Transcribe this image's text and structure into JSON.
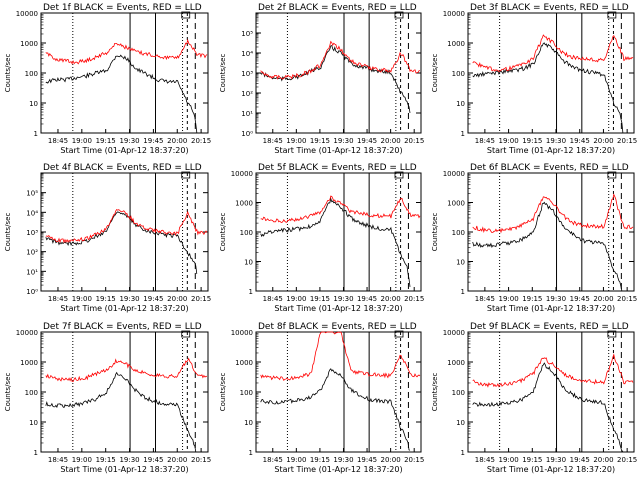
{
  "colors": {
    "events": "#000000",
    "lld": "#ff0000",
    "background": "#ffffff",
    "axes": "#000000"
  },
  "common": {
    "xlabel": "Start Time (01-Apr-12 18:37:20)",
    "ylabel": "Counts/sec",
    "x_ticks": [
      "18:45",
      "19:00",
      "19:15",
      "19:30",
      "19:45",
      "20:00",
      "20:15"
    ],
    "y_ticks_a": [
      "1",
      "10",
      "100",
      "1000",
      "10000"
    ],
    "y_ticks_b": [
      "10⁰",
      "10¹",
      "10²",
      "10³",
      "10⁴",
      "10⁵"
    ],
    "time_range_min": [
      -3,
      102
    ],
    "tick_offsets_min": [
      7.67,
      22.67,
      37.67,
      52.67,
      67.67,
      82.67,
      97.67
    ],
    "vlines_solid_min": [
      53,
      69
    ],
    "vlines_dotted_min": [
      17,
      86
    ],
    "vlines_dashed_min": [
      94,
      89
    ]
  },
  "chart_data": [
    {
      "type": "line",
      "title": "Det 1f BLACK = Events, RED = LLD",
      "yscale": "log",
      "ylim": [
        1,
        10000
      ],
      "ytick_set": "a",
      "series": [
        {
          "name": "Events",
          "color": "#000000",
          "values": [
            50,
            60,
            60,
            70,
            80,
            100,
            120,
            400,
            300,
            130,
            90,
            60,
            50,
            50,
            10,
            0,
            0
          ]
        },
        {
          "name": "LLD",
          "color": "#ff0000",
          "values": [
            450,
            300,
            250,
            230,
            260,
            350,
            480,
            1000,
            700,
            500,
            420,
            380,
            330,
            320,
            1200,
            380,
            380
          ]
        }
      ]
    },
    {
      "type": "line",
      "title": "Det 2f BLACK = Events, RED = LLD",
      "yscale": "log",
      "ylim": [
        1,
        1000000
      ],
      "ytick_set": "b",
      "series": [
        {
          "name": "Events",
          "color": "#000000",
          "values": [
            1000,
            600,
            500,
            550,
            700,
            1200,
            2000,
            20000,
            10000,
            3000,
            2000,
            1500,
            1200,
            1100,
            100,
            0,
            0
          ]
        },
        {
          "name": "LLD",
          "color": "#ff0000",
          "values": [
            1100,
            700,
            600,
            650,
            800,
            1300,
            2500,
            30000,
            15000,
            4000,
            2500,
            1800,
            1400,
            1300,
            10000,
            1200,
            1200
          ]
        }
      ]
    },
    {
      "type": "line",
      "title": "Det 3f BLACK = Events, RED = LLD",
      "yscale": "log",
      "ylim": [
        1,
        10000
      ],
      "ytick_set": "a",
      "series": [
        {
          "name": "Events",
          "color": "#000000",
          "values": [
            80,
            90,
            100,
            110,
            120,
            140,
            200,
            1000,
            600,
            250,
            150,
            120,
            100,
            90,
            10,
            0,
            0
          ]
        },
        {
          "name": "LLD",
          "color": "#ff0000",
          "values": [
            250,
            160,
            130,
            130,
            150,
            200,
            300,
            1800,
            1000,
            450,
            330,
            300,
            280,
            260,
            1800,
            300,
            300
          ]
        }
      ]
    },
    {
      "type": "line",
      "title": "Det 4f BLACK = Events, RED = LLD",
      "yscale": "log",
      "ylim": [
        1,
        1000000
      ],
      "ytick_set": "b",
      "series": [
        {
          "name": "Events",
          "color": "#000000",
          "values": [
            500,
            300,
            250,
            280,
            350,
            600,
            1200,
            12000,
            6000,
            2000,
            1200,
            900,
            700,
            650,
            80,
            0,
            0
          ]
        },
        {
          "name": "LLD",
          "color": "#ff0000",
          "values": [
            700,
            400,
            350,
            380,
            450,
            800,
            1500,
            16000,
            8000,
            2500,
            1500,
            1100,
            900,
            850,
            9000,
            900,
            900
          ]
        }
      ]
    },
    {
      "type": "line",
      "title": "Det 5f BLACK = Events, RED = LLD",
      "yscale": "log",
      "ylim": [
        1,
        10000
      ],
      "ytick_set": "a",
      "series": [
        {
          "name": "Events",
          "color": "#000000",
          "values": [
            80,
            100,
            110,
            120,
            130,
            160,
            250,
            1300,
            700,
            300,
            200,
            150,
            130,
            120,
            15,
            0,
            0
          ]
        },
        {
          "name": "LLD",
          "color": "#ff0000",
          "values": [
            300,
            250,
            240,
            250,
            280,
            350,
            500,
            1500,
            900,
            500,
            420,
            380,
            350,
            340,
            1500,
            350,
            350
          ]
        }
      ]
    },
    {
      "type": "line",
      "title": "Det 6f BLACK = Events, RED = LLD",
      "yscale": "log",
      "ylim": [
        1,
        10000
      ],
      "ytick_set": "a",
      "series": [
        {
          "name": "Events",
          "color": "#000000",
          "values": [
            40,
            35,
            35,
            40,
            45,
            60,
            100,
            1000,
            500,
            150,
            80,
            50,
            45,
            40,
            5,
            0,
            0
          ]
        },
        {
          "name": "LLD",
          "color": "#ff0000",
          "values": [
            150,
            120,
            110,
            115,
            130,
            180,
            280,
            1600,
            900,
            350,
            200,
            170,
            160,
            150,
            1800,
            150,
            150
          ]
        }
      ]
    },
    {
      "type": "line",
      "title": "Det 7f BLACK = Events, RED = LLD",
      "yscale": "log",
      "ylim": [
        1,
        10000
      ],
      "ytick_set": "a",
      "series": [
        {
          "name": "Events",
          "color": "#000000",
          "values": [
            40,
            35,
            35,
            38,
            45,
            60,
            100,
            400,
            250,
            100,
            60,
            45,
            40,
            38,
            5,
            0,
            0
          ]
        },
        {
          "name": "LLD",
          "color": "#ff0000",
          "values": [
            350,
            280,
            250,
            260,
            300,
            400,
            550,
            1100,
            800,
            500,
            400,
            360,
            340,
            330,
            1300,
            340,
            340
          ]
        }
      ]
    },
    {
      "type": "line",
      "title": "Det 8f BLACK = Events, RED = LLD",
      "yscale": "log",
      "ylim": [
        1,
        10000
      ],
      "ytick_set": "a",
      "series": [
        {
          "name": "Events",
          "color": "#000000",
          "values": [
            50,
            45,
            45,
            50,
            55,
            70,
            110,
            600,
            350,
            120,
            70,
            55,
            50,
            48,
            6,
            0,
            0
          ]
        },
        {
          "name": "LLD",
          "color": "#ff0000",
          "values": [
            350,
            300,
            280,
            290,
            320,
            400,
            10000,
            10000,
            10000,
            500,
            420,
            380,
            360,
            350,
            1700,
            360,
            360
          ]
        }
      ]
    },
    {
      "type": "line",
      "title": "Det 9f BLACK = Events, RED = LLD",
      "yscale": "log",
      "ylim": [
        1,
        10000
      ],
      "ytick_set": "a",
      "series": [
        {
          "name": "Events",
          "color": "#000000",
          "values": [
            40,
            38,
            38,
            40,
            45,
            60,
            100,
            900,
            450,
            140,
            80,
            55,
            48,
            45,
            5,
            0,
            0
          ]
        },
        {
          "name": "LLD",
          "color": "#ff0000",
          "values": [
            220,
            180,
            170,
            175,
            200,
            260,
            400,
            1400,
            800,
            400,
            280,
            240,
            220,
            210,
            1600,
            220,
            220
          ]
        }
      ]
    }
  ]
}
